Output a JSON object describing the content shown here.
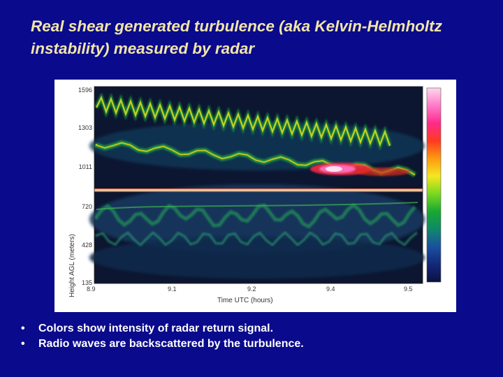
{
  "title": "Real shear generated turbulence (aka Kelvin-Helmholtz instability) measured by radar",
  "figure": {
    "ylabel": "Height AGL (meters)",
    "xlabel": "Time UTC (hours)",
    "yticks": [
      "1596",
      "1303",
      "1011",
      "720",
      "428",
      "135"
    ],
    "xticks": [
      "8.9",
      "9.1",
      "9.2",
      "9.4",
      "9.5"
    ],
    "colorbar": [
      "#ffd8ec",
      "#ff7ac8",
      "#ff2a8a",
      "#ff3a20",
      "#ff9a10",
      "#f4e820",
      "#7ad820",
      "#18a830",
      "#10886a",
      "#1a50a0",
      "#14287a",
      "#0a1240"
    ]
  },
  "bullets": [
    "Colors show intensity of radar return signal.",
    "Radio waves are backscattered by the turbulence."
  ]
}
